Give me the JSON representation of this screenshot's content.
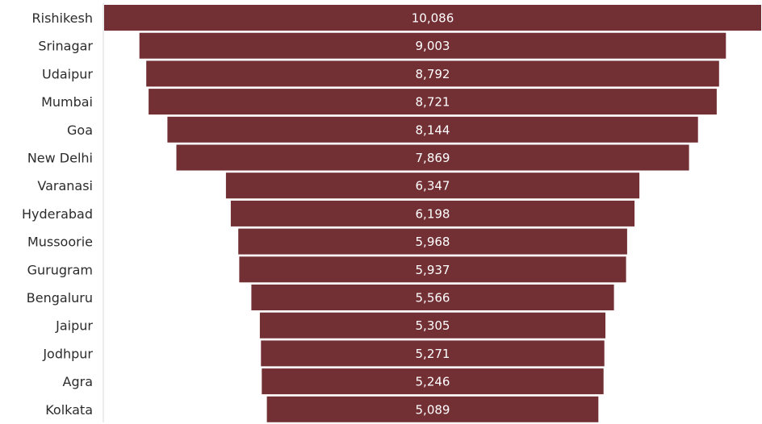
{
  "chart_data": {
    "type": "bar",
    "orientation": "horizontal",
    "layout": "funnel-centered",
    "title": "",
    "xlabel": "",
    "ylabel": "",
    "categories": [
      "Rishikesh",
      "Srinagar",
      "Udaipur",
      "Mumbai",
      "Goa",
      "New Delhi",
      "Varanasi",
      "Hyderabad",
      "Mussoorie",
      "Gurugram",
      "Bengaluru",
      "Jaipur",
      "Jodhpur",
      "Agra",
      "Kolkata"
    ],
    "values": [
      10086,
      9003,
      8792,
      8721,
      8144,
      7869,
      6347,
      6198,
      5968,
      5937,
      5566,
      5305,
      5271,
      5246,
      5089
    ],
    "value_labels": [
      "10,086",
      "9,003",
      "8,792",
      "8,721",
      "8,144",
      "7,869",
      "6,347",
      "6,198",
      "5,968",
      "5,937",
      "5,566",
      "5,305",
      "5,271",
      "5,246",
      "5,089"
    ],
    "grid": false,
    "legend": "none",
    "colors": {
      "bar": "#722F34",
      "label": "#2b2b2b",
      "value_text": "#ffffff",
      "divider": "#d9d9d9"
    }
  }
}
